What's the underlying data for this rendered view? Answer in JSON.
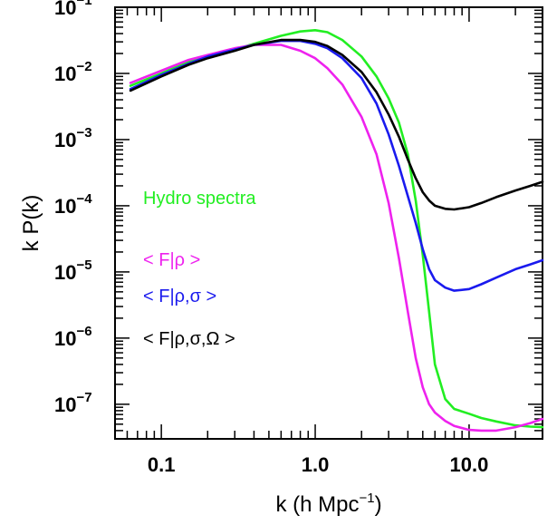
{
  "chart_data": {
    "type": "line",
    "xlabel": "k (h Mpc",
    "xlabel_sup": "−1",
    "xlabel_end": ")",
    "ylabel": "k P(k)",
    "x_scale": "log",
    "y_scale": "log",
    "xlim": [
      0.05,
      30
    ],
    "ylim": [
      3e-08,
      0.1
    ],
    "grid": false,
    "x_ticks": [
      {
        "value": 0.1,
        "label": "0.1"
      },
      {
        "value": 1.0,
        "label": "1.0"
      },
      {
        "value": 10.0,
        "label": "10.0"
      }
    ],
    "y_ticks": [
      {
        "value": 0.1,
        "base": "10",
        "exp": "−1"
      },
      {
        "value": 0.01,
        "base": "10",
        "exp": "−2"
      },
      {
        "value": 0.001,
        "base": "10",
        "exp": "−3"
      },
      {
        "value": 0.0001,
        "base": "10",
        "exp": "−4"
      },
      {
        "value": 1e-05,
        "base": "10",
        "exp": "−5"
      },
      {
        "value": 1e-06,
        "base": "10",
        "exp": "−6"
      },
      {
        "value": 1e-07,
        "base": "10",
        "exp": "−7"
      }
    ],
    "series": [
      {
        "name": "Hydro spectra",
        "color": "#22ee22",
        "x": [
          0.063,
          0.1,
          0.15,
          0.2,
          0.3,
          0.4,
          0.6,
          0.8,
          1.0,
          1.2,
          1.5,
          2.0,
          2.5,
          3.0,
          3.5,
          4.0,
          4.5,
          5.0,
          5.5,
          6.0,
          7.0,
          8.0,
          10.0,
          12.0,
          15.0,
          20.0,
          25.0,
          30.0
        ],
        "y": [
          0.0065,
          0.01,
          0.015,
          0.018,
          0.023,
          0.028,
          0.037,
          0.043,
          0.045,
          0.042,
          0.032,
          0.018,
          0.009,
          0.0042,
          0.0018,
          0.0006,
          0.00012,
          1.8e-05,
          2.5e-06,
          4e-07,
          1.2e-07,
          8.5e-08,
          7.2e-08,
          6.2e-08,
          5.5e-08,
          4.8e-08,
          4.6e-08,
          4.5e-08
        ]
      },
      {
        "name": "< F|ρ >",
        "color": "#ee22ee",
        "x": [
          0.063,
          0.1,
          0.15,
          0.2,
          0.3,
          0.4,
          0.6,
          0.8,
          1.0,
          1.2,
          1.5,
          2.0,
          2.5,
          3.0,
          3.5,
          4.0,
          4.5,
          5.0,
          5.5,
          6.0,
          7.0,
          8.0,
          10.0,
          12.0,
          15.0,
          20.0,
          25.0,
          30.0
        ],
        "y": [
          0.0072,
          0.011,
          0.016,
          0.019,
          0.024,
          0.027,
          0.027,
          0.022,
          0.017,
          0.012,
          0.0068,
          0.0022,
          0.0006,
          0.00011,
          1.6e-05,
          2.5e-06,
          5e-07,
          1.8e-07,
          1e-07,
          7.5e-08,
          5.6e-08,
          4.7e-08,
          4.1e-08,
          4e-08,
          4e-08,
          4.5e-08,
          5.2e-08,
          6e-08
        ]
      },
      {
        "name": "< F|ρ,σ >",
        "color": "#1a1aee",
        "x": [
          0.063,
          0.1,
          0.15,
          0.2,
          0.3,
          0.4,
          0.6,
          0.8,
          1.0,
          1.2,
          1.5,
          2.0,
          2.5,
          3.0,
          3.5,
          4.0,
          4.5,
          5.0,
          5.5,
          6.0,
          7.0,
          8.0,
          10.0,
          12.0,
          15.0,
          20.0,
          25.0,
          30.0
        ],
        "y": [
          0.0058,
          0.0095,
          0.014,
          0.018,
          0.023,
          0.027,
          0.031,
          0.031,
          0.028,
          0.024,
          0.017,
          0.0085,
          0.0035,
          0.0012,
          0.0004,
          0.00014,
          5.5e-05,
          2.2e-05,
          1.1e-05,
          7.5e-06,
          5.8e-06,
          5.2e-06,
          5.5e-06,
          6.5e-06,
          8.2e-06,
          1.1e-05,
          1.3e-05,
          1.5e-05
        ]
      },
      {
        "name": "< F|ρ,σ,Ω >",
        "color": "#000000",
        "x": [
          0.063,
          0.1,
          0.15,
          0.2,
          0.3,
          0.4,
          0.6,
          0.8,
          1.0,
          1.2,
          1.5,
          2.0,
          2.5,
          3.0,
          3.5,
          4.0,
          4.5,
          5.0,
          5.5,
          6.0,
          7.0,
          8.0,
          10.0,
          12.0,
          15.0,
          20.0,
          25.0,
          30.0
        ],
        "y": [
          0.0055,
          0.009,
          0.0135,
          0.017,
          0.022,
          0.027,
          0.032,
          0.032,
          0.03,
          0.026,
          0.019,
          0.0105,
          0.0052,
          0.0024,
          0.0011,
          0.0005,
          0.00026,
          0.00016,
          0.00012,
          0.0001,
          9e-05,
          8.8e-05,
          9.5e-05,
          0.00011,
          0.000135,
          0.00017,
          0.0002,
          0.00023
        ]
      }
    ]
  }
}
